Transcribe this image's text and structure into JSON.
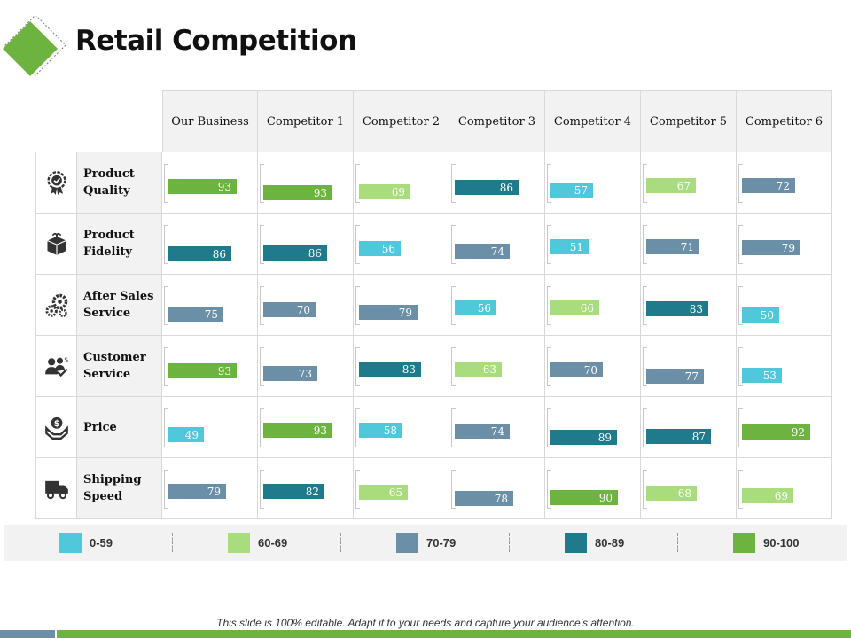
{
  "title": "Retail Competition",
  "footer": "This slide is 100% editable. Adapt it to your needs and capture your audience’s attention.",
  "colors": {
    "range_0_59": "#4fc8dc",
    "range_60_69": "#a9dc7c",
    "range_70_79": "#6a8fa6",
    "range_80_89": "#1f7a8c",
    "range_90_100": "#6db33f"
  },
  "legend": [
    {
      "label": "0-59",
      "color": "#4fc8dc"
    },
    {
      "label": "60-69",
      "color": "#a9dc7c"
    },
    {
      "label": "70-79",
      "color": "#6a8fa6"
    },
    {
      "label": "80-89",
      "color": "#1f7a8c"
    },
    {
      "label": "90-100",
      "color": "#6db33f"
    }
  ],
  "chart_data": {
    "type": "table",
    "title": "Retail Competition",
    "columns": [
      "Our Business",
      "Competitor 1",
      "Competitor 2",
      "Competitor 3",
      "Competitor 4",
      "Competitor 5",
      "Competitor 6"
    ],
    "rows": [
      {
        "label": "Product Quality",
        "icon": "award-badge-icon",
        "values": [
          93,
          93,
          69,
          86,
          57,
          67,
          72
        ]
      },
      {
        "label": "Product Fidelity",
        "icon": "package-box-icon",
        "values": [
          86,
          86,
          56,
          74,
          51,
          71,
          79
        ]
      },
      {
        "label": "After Sales Service",
        "icon": "gears-icon",
        "values": [
          75,
          70,
          79,
          56,
          66,
          83,
          50
        ]
      },
      {
        "label": "Customer Service",
        "icon": "customer-support-icon",
        "values": [
          93,
          73,
          83,
          63,
          70,
          77,
          53
        ]
      },
      {
        "label": "Price",
        "icon": "hand-money-icon",
        "values": [
          49,
          93,
          58,
          74,
          89,
          87,
          92
        ]
      },
      {
        "label": "Shipping Speed",
        "icon": "delivery-truck-icon",
        "values": [
          79,
          82,
          65,
          78,
          90,
          68,
          69
        ]
      }
    ],
    "value_range": [
      0,
      100
    ]
  }
}
